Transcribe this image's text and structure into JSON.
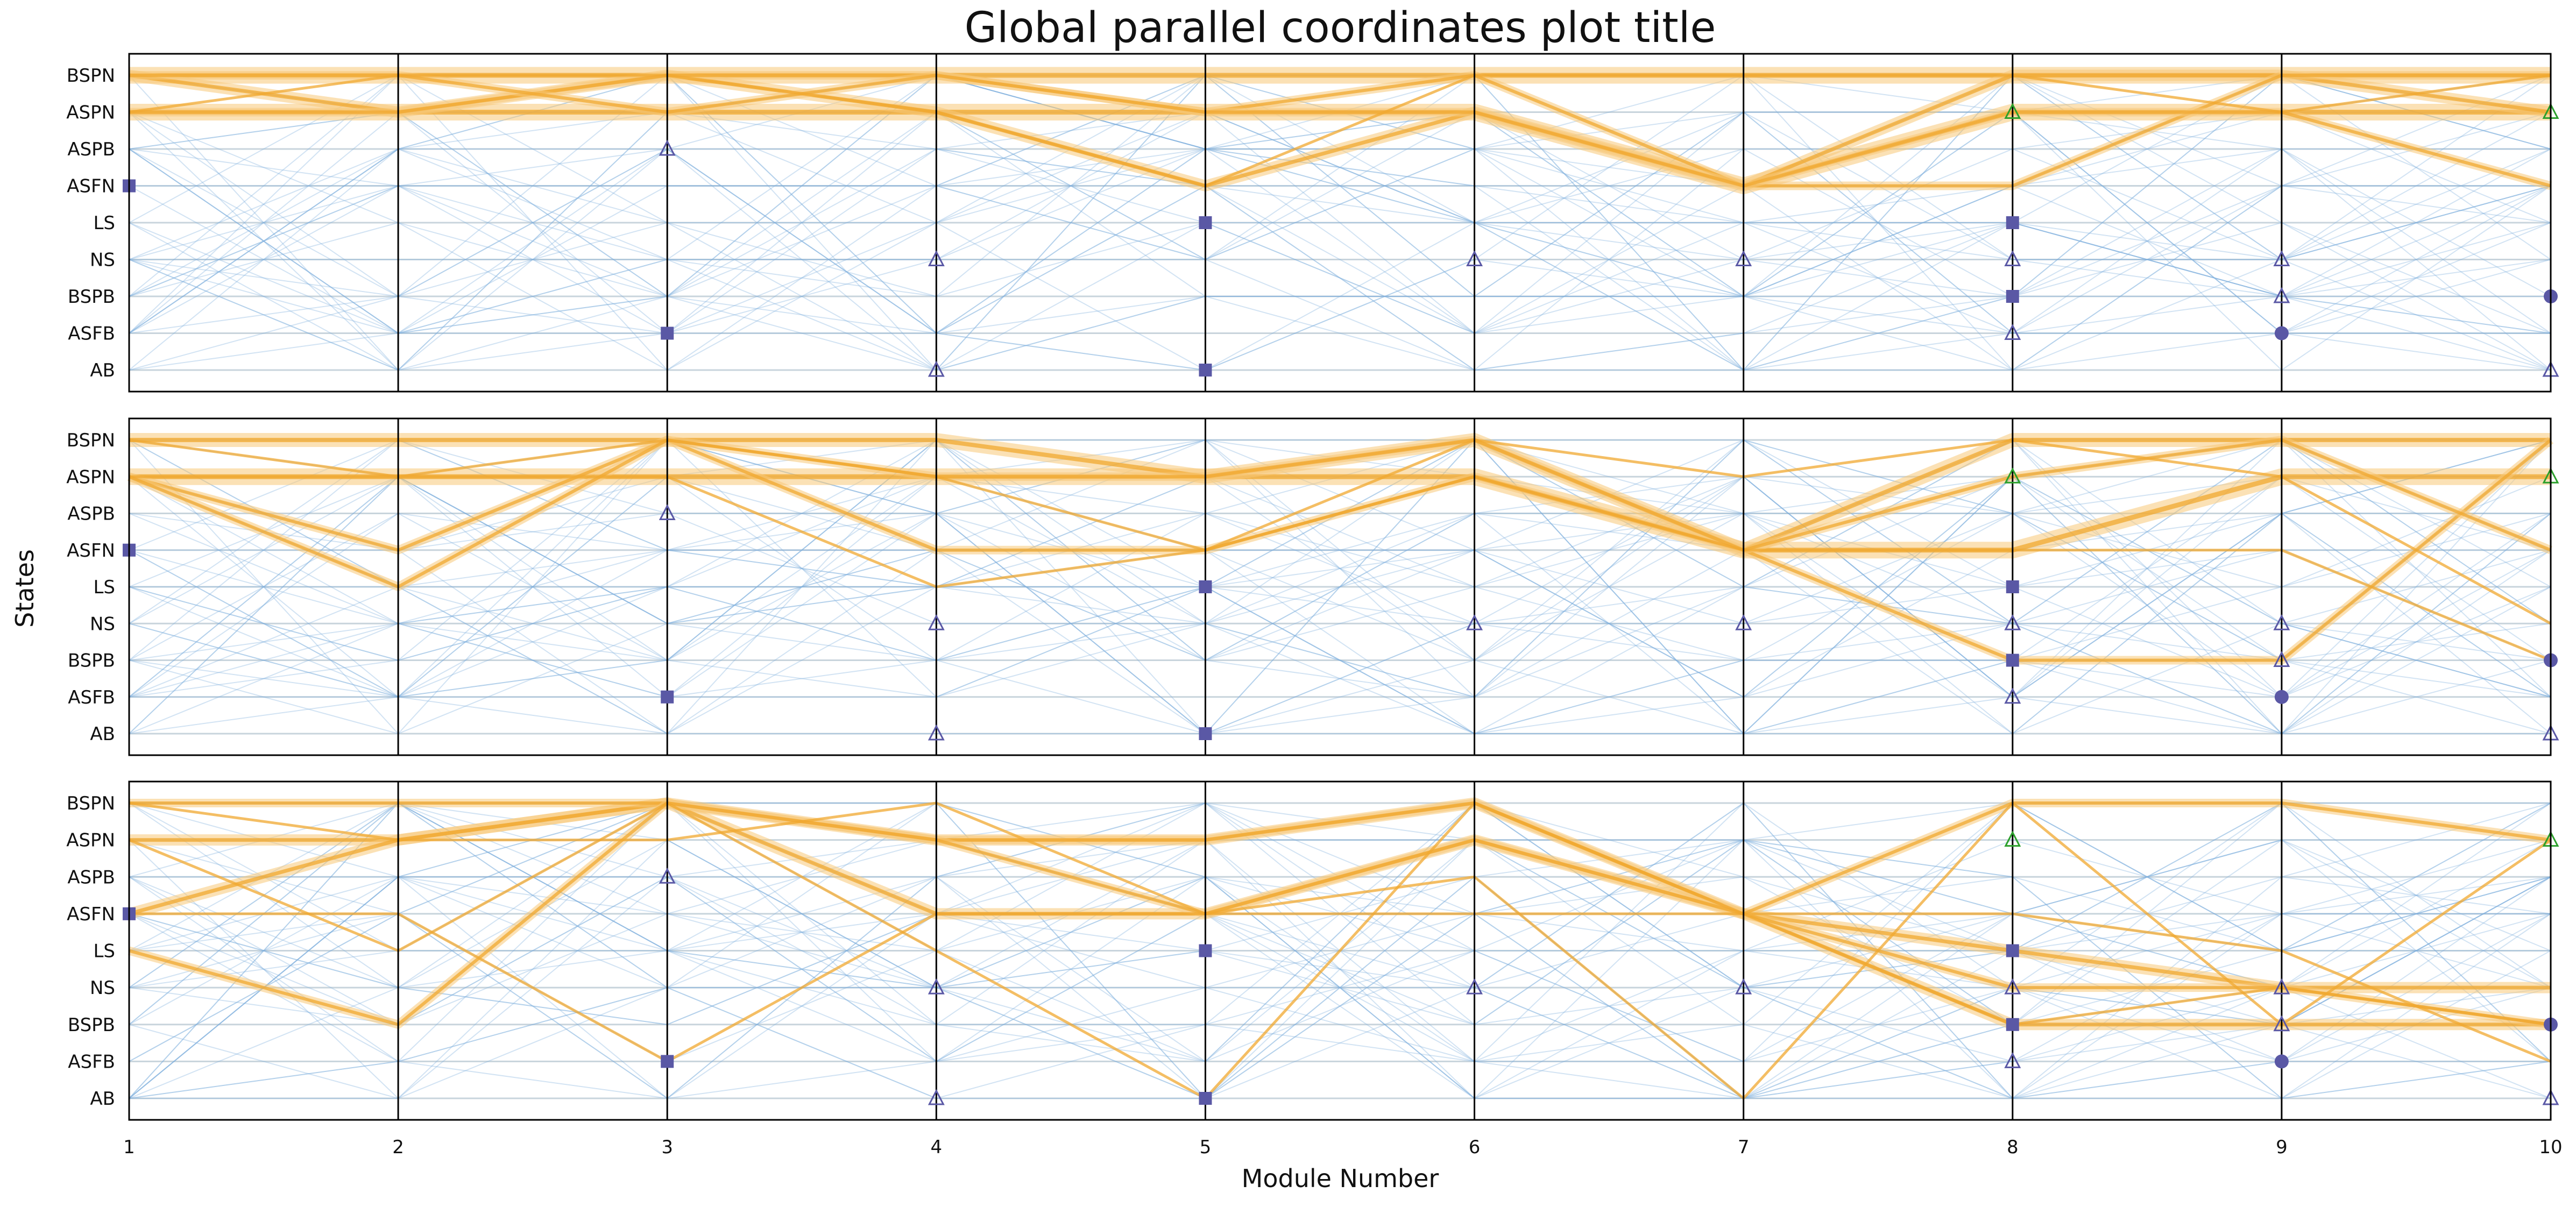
{
  "chart_data": {
    "type": "line",
    "title": "Global parallel coordinates plot title",
    "xlabel": "Module Number",
    "ylabel": "States",
    "x": [
      1,
      2,
      3,
      4,
      5,
      6,
      7,
      8,
      9,
      10
    ],
    "xlim": [
      1,
      10
    ],
    "states": [
      "BSPN",
      "ASPN",
      "ASPB",
      "ASFN",
      "LS",
      "NS",
      "BSPB",
      "ASFB",
      "AB"
    ],
    "colors": {
      "highlight": "#f0a830",
      "highlight_band": "#f8c978",
      "background": "#7fb0dc",
      "marker": "#5a58a5",
      "marker_green": "#2ca02c",
      "grid": "#c8d4dc",
      "divider": "#000000"
    },
    "panels": [
      {
        "markers": [
          {
            "x": 1,
            "state": "ASFN",
            "shape": "square"
          },
          {
            "x": 3,
            "state": "ASPB",
            "shape": "triangle"
          },
          {
            "x": 3,
            "state": "ASFB",
            "shape": "square"
          },
          {
            "x": 4,
            "state": "NS",
            "shape": "triangle"
          },
          {
            "x": 4,
            "state": "AB",
            "shape": "triangle"
          },
          {
            "x": 5,
            "state": "LS",
            "shape": "square"
          },
          {
            "x": 5,
            "state": "AB",
            "shape": "square"
          },
          {
            "x": 6,
            "state": "NS",
            "shape": "triangle"
          },
          {
            "x": 7,
            "state": "NS",
            "shape": "triangle"
          },
          {
            "x": 8,
            "state": "ASPN",
            "shape": "triangle-green"
          },
          {
            "x": 8,
            "state": "LS",
            "shape": "square"
          },
          {
            "x": 8,
            "state": "NS",
            "shape": "triangle"
          },
          {
            "x": 8,
            "state": "BSPB",
            "shape": "square"
          },
          {
            "x": 8,
            "state": "ASFB",
            "shape": "triangle"
          },
          {
            "x": 9,
            "state": "NS",
            "shape": "triangle"
          },
          {
            "x": 9,
            "state": "BSPB",
            "shape": "triangle"
          },
          {
            "x": 9,
            "state": "ASFB",
            "shape": "circle"
          },
          {
            "x": 10,
            "state": "ASPN",
            "shape": "triangle-green"
          },
          {
            "x": 10,
            "state": "BSPB",
            "shape": "circle"
          },
          {
            "x": 10,
            "state": "AB",
            "shape": "triangle"
          }
        ],
        "highlight_paths": [
          {
            "states": [
              "BSPN",
              "BSPN",
              "BSPN",
              "BSPN",
              "BSPN",
              "BSPN",
              "BSPN",
              "BSPN",
              "BSPN",
              "BSPN"
            ],
            "weight": 5
          },
          {
            "states": [
              "ASPN",
              "ASPN",
              "ASPN",
              "ASPN",
              "ASPN",
              "ASPN",
              "ASFN",
              "ASPN",
              "ASPN",
              "ASPN"
            ],
            "weight": 5
          },
          {
            "states": [
              "BSPN",
              "ASPN",
              "BSPN",
              "ASPN",
              "ASFN",
              "ASPN",
              "ASFN",
              "BSPN",
              "BSPN",
              "ASPN"
            ],
            "weight": 3
          },
          {
            "states": [
              "ASPN",
              "ASPN",
              "BSPN",
              "BSPN",
              "ASPN",
              "BSPN",
              "ASFN",
              "ASFN",
              "BSPN",
              "BSPN"
            ],
            "weight": 2
          },
          {
            "states": [
              "BSPN",
              "BSPN",
              "ASPN",
              "BSPN",
              "ASPN",
              "ASPN",
              "ASFN",
              "ASPN",
              "ASPN",
              "ASFN"
            ],
            "weight": 2
          },
          {
            "states": [
              "ASPN",
              "BSPN",
              "BSPN",
              "ASPN",
              "ASFN",
              "BSPN",
              "BSPN",
              "BSPN",
              "ASPN",
              "BSPN"
            ],
            "weight": 1
          }
        ]
      },
      {
        "markers": [
          {
            "x": 1,
            "state": "ASFN",
            "shape": "square"
          },
          {
            "x": 3,
            "state": "ASPB",
            "shape": "triangle"
          },
          {
            "x": 3,
            "state": "ASFB",
            "shape": "square"
          },
          {
            "x": 4,
            "state": "NS",
            "shape": "triangle"
          },
          {
            "x": 4,
            "state": "AB",
            "shape": "triangle"
          },
          {
            "x": 5,
            "state": "LS",
            "shape": "square"
          },
          {
            "x": 5,
            "state": "AB",
            "shape": "square"
          },
          {
            "x": 6,
            "state": "NS",
            "shape": "triangle"
          },
          {
            "x": 7,
            "state": "NS",
            "shape": "triangle"
          },
          {
            "x": 8,
            "state": "ASPN",
            "shape": "triangle-green"
          },
          {
            "x": 8,
            "state": "LS",
            "shape": "square"
          },
          {
            "x": 8,
            "state": "NS",
            "shape": "triangle"
          },
          {
            "x": 8,
            "state": "BSPB",
            "shape": "square"
          },
          {
            "x": 8,
            "state": "ASFB",
            "shape": "triangle"
          },
          {
            "x": 9,
            "state": "NS",
            "shape": "triangle"
          },
          {
            "x": 9,
            "state": "BSPB",
            "shape": "triangle"
          },
          {
            "x": 9,
            "state": "ASFB",
            "shape": "circle"
          },
          {
            "x": 10,
            "state": "ASPN",
            "shape": "triangle-green"
          },
          {
            "x": 10,
            "state": "BSPB",
            "shape": "circle"
          },
          {
            "x": 10,
            "state": "AB",
            "shape": "triangle"
          }
        ],
        "highlight_paths": [
          {
            "states": [
              "ASPN",
              "ASPN",
              "ASPN",
              "ASPN",
              "ASPN",
              "ASPN",
              "ASFN",
              "ASFN",
              "ASPN",
              "ASPN"
            ],
            "weight": 5
          },
          {
            "states": [
              "BSPN",
              "BSPN",
              "BSPN",
              "BSPN",
              "ASPN",
              "BSPN",
              "ASFN",
              "BSPN",
              "BSPN",
              "BSPN"
            ],
            "weight": 4
          },
          {
            "states": [
              "ASPN",
              "ASFN",
              "BSPN",
              "ASFN",
              "ASFN",
              "ASPN",
              "ASFN",
              "BSPB",
              "BSPB",
              "BSPN"
            ],
            "weight": 2
          },
          {
            "states": [
              "ASPN",
              "LS",
              "BSPN",
              "ASPN",
              "ASPN",
              "BSPN",
              "ASFN",
              "ASPN",
              "BSPN",
              "ASFN"
            ],
            "weight": 2
          },
          {
            "states": [
              "BSPN",
              "ASPN",
              "ASPN",
              "LS",
              "ASFN",
              "ASPN",
              "ASFN",
              "ASFN",
              "ASFN",
              "BSPB"
            ],
            "weight": 1
          },
          {
            "states": [
              "ASPN",
              "ASPN",
              "BSPN",
              "ASPN",
              "ASFN",
              "BSPN",
              "ASPN",
              "BSPN",
              "ASPN",
              "NS"
            ],
            "weight": 1
          }
        ]
      },
      {
        "markers": [
          {
            "x": 1,
            "state": "ASFN",
            "shape": "square"
          },
          {
            "x": 3,
            "state": "ASPB",
            "shape": "triangle"
          },
          {
            "x": 3,
            "state": "ASFB",
            "shape": "square"
          },
          {
            "x": 4,
            "state": "NS",
            "shape": "triangle"
          },
          {
            "x": 4,
            "state": "AB",
            "shape": "triangle"
          },
          {
            "x": 5,
            "state": "LS",
            "shape": "square"
          },
          {
            "x": 5,
            "state": "AB",
            "shape": "square"
          },
          {
            "x": 6,
            "state": "NS",
            "shape": "triangle"
          },
          {
            "x": 7,
            "state": "NS",
            "shape": "triangle"
          },
          {
            "x": 8,
            "state": "ASPN",
            "shape": "triangle-green"
          },
          {
            "x": 8,
            "state": "LS",
            "shape": "square"
          },
          {
            "x": 8,
            "state": "NS",
            "shape": "triangle"
          },
          {
            "x": 8,
            "state": "BSPB",
            "shape": "square"
          },
          {
            "x": 8,
            "state": "ASFB",
            "shape": "triangle"
          },
          {
            "x": 9,
            "state": "NS",
            "shape": "triangle"
          },
          {
            "x": 9,
            "state": "BSPB",
            "shape": "triangle"
          },
          {
            "x": 9,
            "state": "ASFB",
            "shape": "circle"
          },
          {
            "x": 10,
            "state": "ASPN",
            "shape": "triangle-green"
          },
          {
            "x": 10,
            "state": "BSPB",
            "shape": "circle"
          },
          {
            "x": 10,
            "state": "AB",
            "shape": "triangle"
          }
        ],
        "highlight_paths": [
          {
            "states": [
              "ASPN",
              "ASPN",
              "BSPN",
              "ASPN",
              "ASPN",
              "BSPN",
              "ASFN",
              "LS",
              "NS",
              "NS"
            ],
            "weight": 3
          },
          {
            "states": [
              "ASFN",
              "ASPN",
              "BSPN",
              "ASFN",
              "ASFN",
              "ASPN",
              "ASFN",
              "BSPB",
              "BSPB",
              "BSPB"
            ],
            "weight": 3
          },
          {
            "states": [
              "BSPN",
              "BSPN",
              "BSPN",
              "ASPN",
              "ASPN",
              "BSPN",
              "ASFN",
              "NS",
              "NS",
              "BSPB"
            ],
            "weight": 2
          },
          {
            "states": [
              "LS",
              "BSPB",
              "BSPN",
              "ASPN",
              "ASFN",
              "ASPN",
              "ASFN",
              "BSPN",
              "BSPN",
              "ASPN"
            ],
            "weight": 2
          },
          {
            "states": [
              "ASFN",
              "ASFN",
              "ASFB",
              "ASFN",
              "ASFN",
              "ASFN",
              "ASFN",
              "ASFN",
              "LS",
              "ASFB"
            ],
            "weight": 1
          },
          {
            "states": [
              "ASPN",
              "LS",
              "BSPN",
              "LS",
              "AB",
              "BSPN",
              "ASFN",
              "BSPB",
              "NS",
              "BSPB"
            ],
            "weight": 1
          },
          {
            "states": [
              "BSPN",
              "ASPN",
              "ASPN",
              "BSPN",
              "ASFN",
              "ASPB",
              "AB",
              "BSPN",
              "BSPB",
              "ASPN"
            ],
            "weight": 1
          }
        ]
      }
    ],
    "background_line_count": 40
  }
}
